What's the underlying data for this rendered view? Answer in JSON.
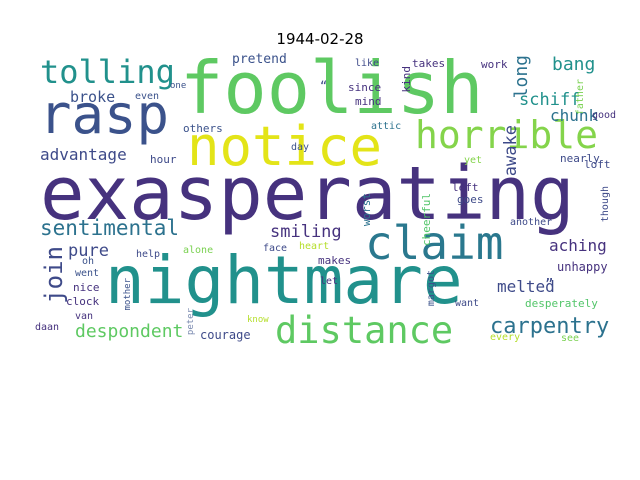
{
  "title": "1944-02-28",
  "palette": {
    "dark_purple": "#46327e",
    "indigo": "#3e4a89",
    "blue": "#365c8d",
    "teal_blue": "#2a788e",
    "teal": "#21918c",
    "green_teal": "#1fa187",
    "green": "#35b779",
    "light_green": "#6ece58",
    "lime": "#b5de2b",
    "yellow": "#e3e418",
    "grey": "#7a7a7a"
  },
  "words": [
    {
      "text": "exasperating",
      "color": "#46327e"
    },
    {
      "text": "foolish",
      "color": "#5ec962"
    },
    {
      "text": "nightmare",
      "color": "#21918c"
    },
    {
      "text": "rasp",
      "color": "#3b528b"
    },
    {
      "text": "notice",
      "color": "#e3e418"
    },
    {
      "text": "claim",
      "color": "#2a788e"
    },
    {
      "text": "horrible",
      "color": "#84d44b"
    },
    {
      "text": "distance",
      "color": "#5ec962"
    },
    {
      "text": "tolling",
      "color": "#21918c"
    },
    {
      "text": "sentimental",
      "color": "#2c728e"
    },
    {
      "text": "carpentry",
      "color": "#2c728e"
    },
    {
      "text": "join",
      "color": "#3e4a89"
    },
    {
      "text": "despondent",
      "color": "#5ec962"
    },
    {
      "text": "smiling",
      "color": "#46327e"
    },
    {
      "text": "pure",
      "color": "#3e4a89"
    },
    {
      "text": "advantage",
      "color": "#3e4a89"
    },
    {
      "text": "chunk",
      "color": "#2c728e"
    },
    {
      "text": "broke",
      "color": "#3b528b"
    },
    {
      "text": "bang",
      "color": "#21918c"
    },
    {
      "text": "schiff",
      "color": "#21918c"
    },
    {
      "text": "long",
      "color": "#2c728e"
    },
    {
      "text": "awake",
      "color": "#3e4a89"
    },
    {
      "text": "melted",
      "color": "#3e4a89"
    },
    {
      "text": "aching",
      "color": "#46327e"
    },
    {
      "text": "unhappy",
      "color": "#46327e"
    },
    {
      "text": "courage",
      "color": "#3e4a89"
    },
    {
      "text": "desperately",
      "color": "#52c569"
    },
    {
      "text": "pretend",
      "color": "#3b528b"
    },
    {
      "text": "takes",
      "color": "#46327e"
    },
    {
      "text": "work",
      "color": "#46327e"
    },
    {
      "text": "kind",
      "color": "#46327e"
    },
    {
      "text": "father",
      "color": "#7ad151"
    },
    {
      "text": "good",
      "color": "#46327e"
    },
    {
      "text": "like",
      "color": "#3e4a89"
    },
    {
      "text": "since",
      "color": "#46327e"
    },
    {
      "text": "mind",
      "color": "#46327e"
    },
    {
      "text": "attic",
      "color": "#2c728e"
    },
    {
      "text": "even",
      "color": "#3b528b"
    },
    {
      "text": "one",
      "color": "#3b528b"
    },
    {
      "text": "others",
      "color": "#3b528b"
    },
    {
      "text": "hour",
      "color": "#3e4a89"
    },
    {
      "text": "day",
      "color": "#3b528b"
    },
    {
      "text": "worst",
      "color": "#2c728e"
    },
    {
      "text": "cheerful",
      "color": "#52c569"
    },
    {
      "text": "left",
      "color": "#46327e"
    },
    {
      "text": "goes",
      "color": "#3e4a89"
    },
    {
      "text": "yet",
      "color": "#84d44b"
    },
    {
      "text": "nearly",
      "color": "#3e4a89"
    },
    {
      "text": "loft",
      "color": "#3e4a89"
    },
    {
      "text": "though",
      "color": "#3e4a89"
    },
    {
      "text": "another",
      "color": "#3e4a89"
    },
    {
      "text": "help",
      "color": "#3e4a89"
    },
    {
      "text": "alone",
      "color": "#7ad151"
    },
    {
      "text": "face",
      "color": "#3e4a89"
    },
    {
      "text": "heart",
      "color": "#b5de2b"
    },
    {
      "text": "makes",
      "color": "#46327e"
    },
    {
      "text": "let",
      "color": "#46327e"
    },
    {
      "text": "margot",
      "color": "#3b528b"
    },
    {
      "text": "want",
      "color": "#3e4a89"
    },
    {
      "text": "every",
      "color": "#b5de2b"
    },
    {
      "text": "see",
      "color": "#7ad151"
    },
    {
      "text": "oh",
      "color": "#3b528b"
    },
    {
      "text": "went",
      "color": "#3b528b"
    },
    {
      "text": "nice",
      "color": "#46327e"
    },
    {
      "text": "clock",
      "color": "#46327e"
    },
    {
      "text": "van",
      "color": "#46327e"
    },
    {
      "text": "daan",
      "color": "#46327e"
    },
    {
      "text": "peter",
      "color": "#7a8ab0"
    },
    {
      "text": "mother",
      "color": "#3b528b"
    },
    {
      "text": "know",
      "color": "#b5de2b"
    },
    {
      "text": "“",
      "color": "#3e4a89"
    },
    {
      "text": "”",
      "color": "#3e4a89"
    }
  ]
}
